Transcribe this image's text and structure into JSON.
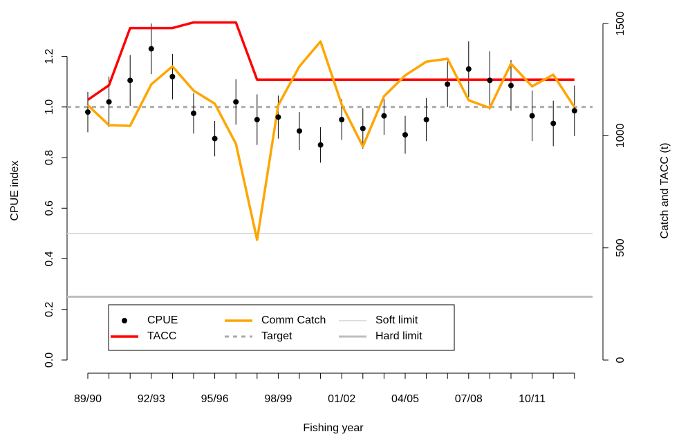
{
  "chart_data": {
    "type": "line",
    "x_label": "Fishing year",
    "y_label": "CPUE index",
    "y2_label": "Catch and TACC (t)",
    "categories": [
      "89/90",
      null,
      null,
      "92/93",
      null,
      null,
      "95/96",
      null,
      null,
      "98/99",
      null,
      null,
      "01/02",
      null,
      null,
      "04/05",
      null,
      null,
      "07/08",
      null,
      null,
      "10/11",
      null,
      null
    ],
    "ylim": [
      -0.052,
      1.39
    ],
    "yticks": [
      {
        "value": 0,
        "label": "0.0"
      },
      0.2,
      0.4,
      0.6,
      0.8,
      {
        "value": 1,
        "label": "1.0"
      },
      1.2
    ],
    "y2lim": [
      -58.5,
      1568
    ],
    "y2ticks": [
      0,
      500,
      1000,
      1500
    ],
    "series": [
      {
        "name": "CPUE",
        "kind": "points",
        "color": "#000000",
        "values": [
          0.98,
          1.02,
          1.105,
          1.23,
          1.12,
          0.975,
          0.875,
          1.02,
          0.95,
          0.96,
          0.905,
          0.85,
          0.95,
          0.915,
          0.965,
          0.89,
          0.95,
          1.09,
          1.15,
          1.105,
          1.085,
          0.965,
          0.935,
          0.985
        ],
        "errors": [
          0.08,
          0.1,
          0.1,
          0.1,
          0.09,
          0.08,
          0.07,
          0.09,
          0.1,
          0.085,
          0.075,
          0.07,
          0.08,
          0.08,
          0.075,
          0.075,
          0.085,
          0.09,
          0.11,
          0.115,
          0.1,
          0.1,
          0.09,
          0.1
        ]
      },
      {
        "name": "TACC",
        "kind": "line",
        "axis": "y2",
        "color": "#ff0000",
        "values": [
          1160,
          1225,
          1480,
          1480,
          1480,
          1505,
          1505,
          1505,
          1250,
          1250,
          1250,
          1250,
          1250,
          1250,
          1250,
          1250,
          1250,
          1250,
          1250,
          1250,
          1250,
          1250,
          1250,
          1250
        ]
      },
      {
        "name": "Comm Catch",
        "kind": "line",
        "axis": "y2",
        "color": "#ffa500",
        "values": [
          1136,
          1047,
          1044,
          1229,
          1309,
          1201,
          1143,
          964,
          536,
          1136,
          1309,
          1420,
          1139,
          952,
          1176,
          1269,
          1330,
          1343,
          1158,
          1124,
          1321,
          1220,
          1272,
          1127
        ]
      }
    ],
    "hlines": [
      {
        "name": "Target",
        "value": 1,
        "color": "#aaaaaa",
        "dashed": true
      },
      {
        "name": "Soft limit",
        "value": 0.5,
        "color": "#d3d3d3",
        "dashed": false
      },
      {
        "name": "Hard limit",
        "value": 0.25,
        "color": "#bebebe",
        "dashed": false
      }
    ]
  }
}
